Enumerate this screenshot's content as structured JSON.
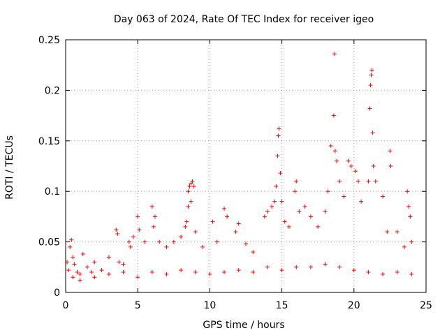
{
  "chart_data": {
    "type": "scatter",
    "title": "Day 063 of 2024, Rate Of TEC Index for receiver igeo",
    "xlabel": "GPS time / hours",
    "ylabel": "ROTI / TECUs",
    "xlim": [
      0,
      25
    ],
    "ylim": [
      0,
      0.25
    ],
    "x_ticks": [
      0,
      5,
      10,
      15,
      20,
      25
    ],
    "x_tick_labels": [
      "0",
      "5",
      "10",
      "15",
      "20",
      "25"
    ],
    "y_ticks": [
      0,
      0.05,
      0.1,
      0.15,
      0.2,
      0.25
    ],
    "y_tick_labels": [
      "0",
      "0.05",
      "0.1",
      "0.15",
      "0.2",
      "0.25"
    ],
    "grid": true,
    "legend": "none",
    "marker": "+",
    "color": "#ff0000",
    "points": [
      [
        0.1,
        0.03
      ],
      [
        0.2,
        0.022
      ],
      [
        0.3,
        0.045
      ],
      [
        0.4,
        0.052
      ],
      [
        0.5,
        0.035
      ],
      [
        0.6,
        0.028
      ],
      [
        0.8,
        0.02
      ],
      [
        1.0,
        0.018
      ],
      [
        1.2,
        0.038
      ],
      [
        1.5,
        0.025
      ],
      [
        1.8,
        0.02
      ],
      [
        2.0,
        0.03
      ],
      [
        2.5,
        0.022
      ],
      [
        3.0,
        0.035
      ],
      [
        3.5,
        0.062
      ],
      [
        3.6,
        0.058
      ],
      [
        3.7,
        0.03
      ],
      [
        4.0,
        0.028
      ],
      [
        4.4,
        0.05
      ],
      [
        4.5,
        0.045
      ],
      [
        4.7,
        0.055
      ],
      [
        5.0,
        0.075
      ],
      [
        5.1,
        0.062
      ],
      [
        5.5,
        0.05
      ],
      [
        6.0,
        0.085
      ],
      [
        6.2,
        0.075
      ],
      [
        6.1,
        0.065
      ],
      [
        6.5,
        0.05
      ],
      [
        7.0,
        0.045
      ],
      [
        7.5,
        0.05
      ],
      [
        8.0,
        0.055
      ],
      [
        8.5,
        0.1
      ],
      [
        8.6,
        0.105
      ],
      [
        8.7,
        0.108
      ],
      [
        8.8,
        0.11
      ],
      [
        8.9,
        0.105
      ],
      [
        8.3,
        0.065
      ],
      [
        8.4,
        0.07
      ],
      [
        8.5,
        0.085
      ],
      [
        8.7,
        0.09
      ],
      [
        9.0,
        0.06
      ],
      [
        9.5,
        0.045
      ],
      [
        10.2,
        0.07
      ],
      [
        10.5,
        0.05
      ],
      [
        11.0,
        0.083
      ],
      [
        11.2,
        0.075
      ],
      [
        11.8,
        0.06
      ],
      [
        12.0,
        0.068
      ],
      [
        12.5,
        0.048
      ],
      [
        13.0,
        0.04
      ],
      [
        13.8,
        0.075
      ],
      [
        14.0,
        0.08
      ],
      [
        14.3,
        0.085
      ],
      [
        14.5,
        0.09
      ],
      [
        14.6,
        0.105
      ],
      [
        14.7,
        0.135
      ],
      [
        14.75,
        0.155
      ],
      [
        14.8,
        0.162
      ],
      [
        14.9,
        0.118
      ],
      [
        15.0,
        0.09
      ],
      [
        15.2,
        0.07
      ],
      [
        15.5,
        0.065
      ],
      [
        15.9,
        0.1
      ],
      [
        16.0,
        0.11
      ],
      [
        16.2,
        0.08
      ],
      [
        16.6,
        0.085
      ],
      [
        17.0,
        0.075
      ],
      [
        17.5,
        0.065
      ],
      [
        18.0,
        0.08
      ],
      [
        18.2,
        0.1
      ],
      [
        18.4,
        0.145
      ],
      [
        18.6,
        0.175
      ],
      [
        18.65,
        0.236
      ],
      [
        18.7,
        0.14
      ],
      [
        18.8,
        0.13
      ],
      [
        19.0,
        0.11
      ],
      [
        19.3,
        0.095
      ],
      [
        19.6,
        0.13
      ],
      [
        19.8,
        0.125
      ],
      [
        20.1,
        0.12
      ],
      [
        20.3,
        0.11
      ],
      [
        20.5,
        0.09
      ],
      [
        21.0,
        0.11
      ],
      [
        21.1,
        0.182
      ],
      [
        21.15,
        0.205
      ],
      [
        21.2,
        0.215
      ],
      [
        21.25,
        0.22
      ],
      [
        21.3,
        0.158
      ],
      [
        21.35,
        0.125
      ],
      [
        21.5,
        0.11
      ],
      [
        22.0,
        0.095
      ],
      [
        22.3,
        0.06
      ],
      [
        22.5,
        0.14
      ],
      [
        22.55,
        0.125
      ],
      [
        23.0,
        0.06
      ],
      [
        23.5,
        0.045
      ],
      [
        23.7,
        0.1
      ],
      [
        23.8,
        0.085
      ],
      [
        23.9,
        0.075
      ],
      [
        24.0,
        0.05
      ],
      [
        0.5,
        0.015
      ],
      [
        1.0,
        0.012
      ],
      [
        2.0,
        0.015
      ],
      [
        3.0,
        0.018
      ],
      [
        4.0,
        0.02
      ],
      [
        5.0,
        0.015
      ],
      [
        6.0,
        0.02
      ],
      [
        7.0,
        0.018
      ],
      [
        8.0,
        0.022
      ],
      [
        9.0,
        0.02
      ],
      [
        10.0,
        0.018
      ],
      [
        11.0,
        0.02
      ],
      [
        12.0,
        0.022
      ],
      [
        13.0,
        0.02
      ],
      [
        14.0,
        0.025
      ],
      [
        15.0,
        0.022
      ],
      [
        16.0,
        0.025
      ],
      [
        17.0,
        0.025
      ],
      [
        18.0,
        0.028
      ],
      [
        19.0,
        0.025
      ],
      [
        20.0,
        0.022
      ],
      [
        21.0,
        0.02
      ],
      [
        22.0,
        0.018
      ],
      [
        23.0,
        0.02
      ],
      [
        24.0,
        0.018
      ]
    ]
  }
}
